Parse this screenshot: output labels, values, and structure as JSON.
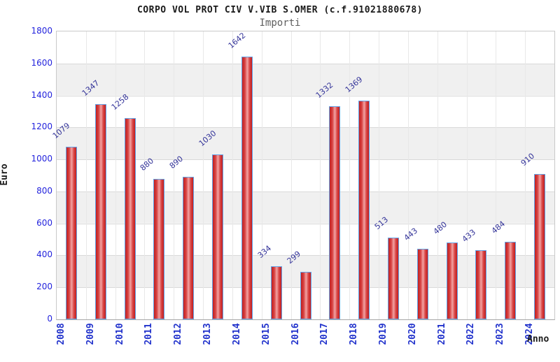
{
  "chart": {
    "title": "CORPO VOL PROT CIV V.VIB S.OMER (c.f.91021880678)",
    "subtitle": "Importi",
    "ylabel": "Euro",
    "xlabel": "Anno"
  },
  "chart_data": {
    "type": "bar",
    "title": "CORPO VOL PROT CIV V.VIB S.OMER (c.f.91021880678)",
    "subtitle": "Importi",
    "xlabel": "Anno",
    "ylabel": "Euro",
    "categories": [
      "2008",
      "2009",
      "2010",
      "2011",
      "2012",
      "2013",
      "2014",
      "2015",
      "2016",
      "2017",
      "2018",
      "2019",
      "2020",
      "2021",
      "2022",
      "2023",
      "2024"
    ],
    "values": [
      1079,
      1347,
      1258,
      880,
      890,
      1030,
      1642,
      334,
      299,
      1332,
      1369,
      513,
      443,
      480,
      433,
      484,
      910
    ],
    "yticks": [
      0,
      200,
      400,
      600,
      800,
      1000,
      1200,
      1400,
      1600,
      1800
    ],
    "ylim": [
      0,
      1800
    ],
    "grid": true,
    "legend": false,
    "banded_background": true
  },
  "colors": {
    "bar_edge": "#c21f1f",
    "bar_mid": "#d84343",
    "bar_highlight": "#f2a2a2",
    "bar_border": "#61a3e8",
    "value_label": "#333399",
    "ytick_label": "#2424dd",
    "xtick_label": "#2233cc",
    "band": "#f0f0f0",
    "gridline": "#d9d9d9",
    "plot_border": "#c9c9c9",
    "title_text": "#1a1a1a",
    "subtitle_text": "#606060"
  }
}
